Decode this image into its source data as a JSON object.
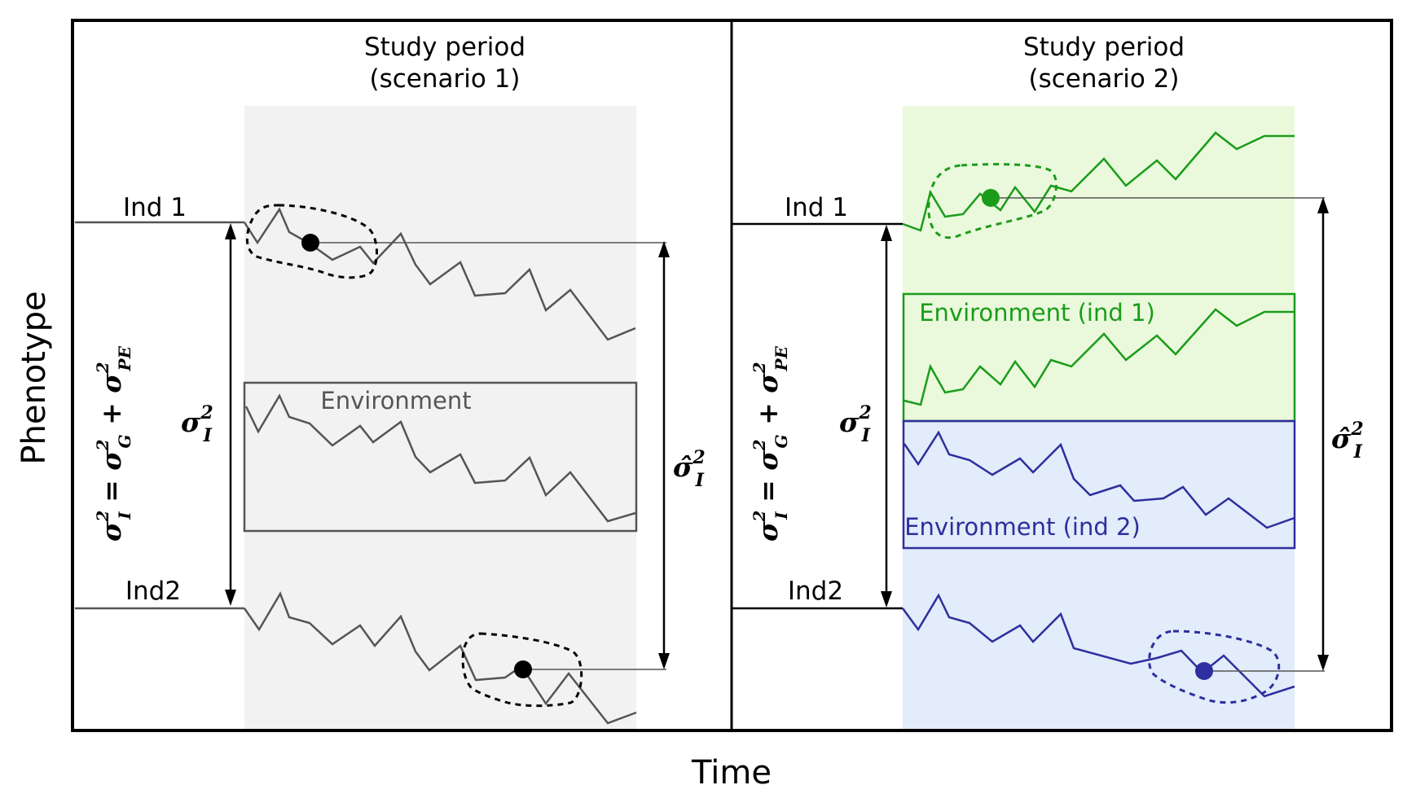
{
  "axes": {
    "xlabel": "Time",
    "ylabel": "Phenotype"
  },
  "panels": [
    {
      "title_line1": "Study period",
      "title_line2": "(scenario 1)",
      "ind1_label": "Ind 1",
      "ind2_label": "Ind2",
      "env_label": "Environment",
      "var_total": {
        "sigma": "σ",
        "sub": "I",
        "sup": "2"
      },
      "var_est": {
        "sigma": "σ̂",
        "sub": "I",
        "sup": "2"
      },
      "equation": {
        "lhs": "σ",
        "lhs_sub": "I",
        "eq": " = ",
        "g": "σ",
        "g_sub": "G",
        "plus": " + ",
        "pe": "σ",
        "pe_sub": "PE",
        "sup": "2"
      }
    },
    {
      "title_line1": "Study period",
      "title_line2": "(scenario 2)",
      "ind1_label": "Ind 1",
      "ind2_label": "Ind2",
      "env1_label": "Environment (ind 1)",
      "env2_label": "Environment (ind 2)",
      "var_total": {
        "sigma": "σ",
        "sub": "I",
        "sup": "2"
      },
      "var_est": {
        "sigma": "σ̂",
        "sub": "I",
        "sup": "2"
      },
      "equation": {
        "lhs": "σ",
        "lhs_sub": "I",
        "eq": " = ",
        "g": "σ",
        "g_sub": "G",
        "plus": " + ",
        "pe": "σ",
        "pe_sub": "PE",
        "sup": "2"
      }
    }
  ],
  "colors": {
    "grey": "#555555",
    "green": "#1a9c1a",
    "blue": "#2e2e9e",
    "grey_bg": "#f2f2f2",
    "green_bg": "#eaf9dc",
    "blue_bg": "#e2ecfa",
    "black": "#000000"
  }
}
